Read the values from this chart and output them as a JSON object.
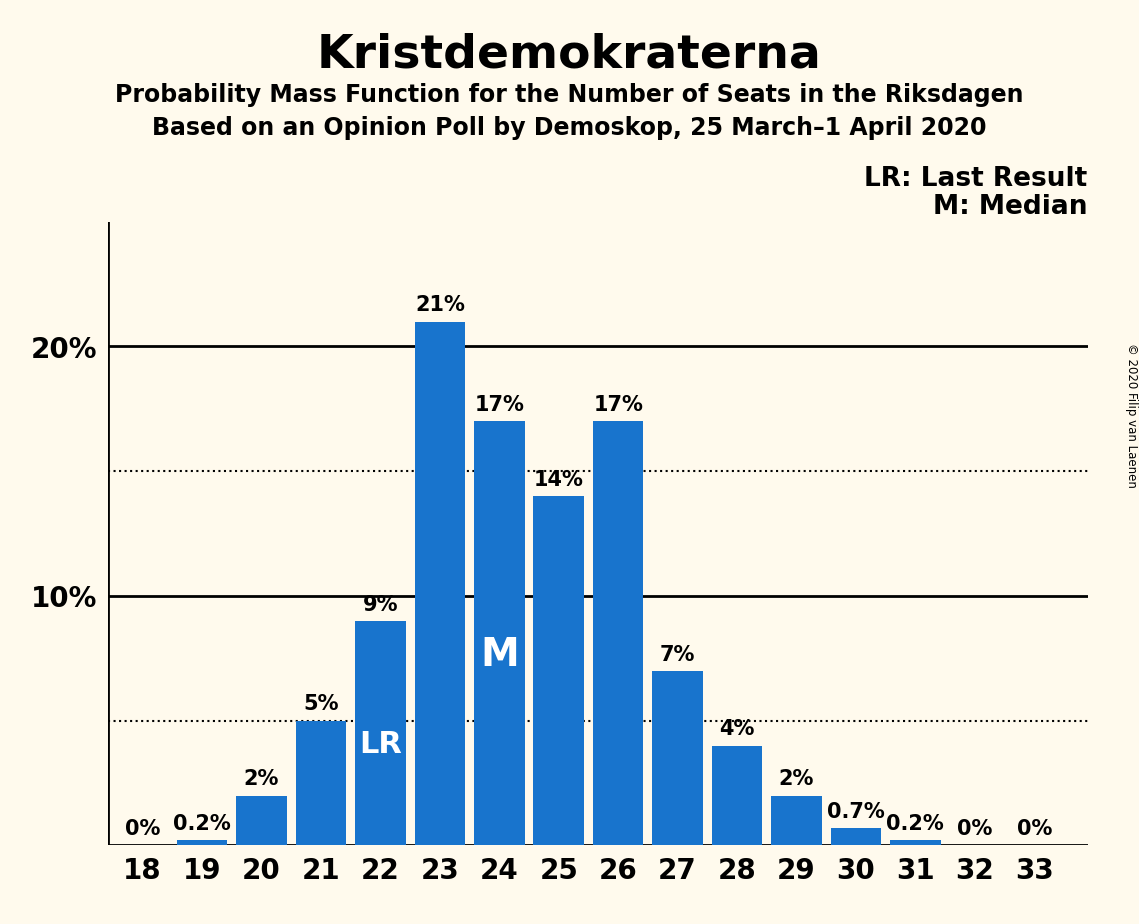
{
  "title": "Kristdemokraterna",
  "subtitle1": "Probability Mass Function for the Number of Seats in the Riksdagen",
  "subtitle2": "Based on an Opinion Poll by Demoskop, 25 March–1 April 2020",
  "copyright": "© 2020 Filip van Laenen",
  "seats": [
    18,
    19,
    20,
    21,
    22,
    23,
    24,
    25,
    26,
    27,
    28,
    29,
    30,
    31,
    32,
    33
  ],
  "probabilities": [
    0.0,
    0.2,
    2.0,
    5.0,
    9.0,
    21.0,
    17.0,
    14.0,
    17.0,
    7.0,
    4.0,
    2.0,
    0.7,
    0.2,
    0.0,
    0.0
  ],
  "bar_color": "#1874CD",
  "background_color": "#FFFAED",
  "bar_labels": [
    "0%",
    "0.2%",
    "2%",
    "5%",
    "9%",
    "21%",
    "17%",
    "14%",
    "17%",
    "7%",
    "4%",
    "2%",
    "0.7%",
    "0.2%",
    "0%",
    "0%"
  ],
  "last_result_seat": 22,
  "median_seat": 24,
  "dotted_lines": [
    5.0,
    15.0
  ],
  "solid_lines": [
    0,
    10,
    20
  ],
  "ylim": [
    0,
    25
  ],
  "legend_text_LR": "LR: Last Result",
  "legend_text_M": "M: Median",
  "title_fontsize": 34,
  "subtitle_fontsize": 17,
  "axis_fontsize": 20,
  "bar_label_fontsize": 15,
  "legend_fontsize": 19,
  "lr_marker_fontsize": 22,
  "m_marker_fontsize": 28
}
